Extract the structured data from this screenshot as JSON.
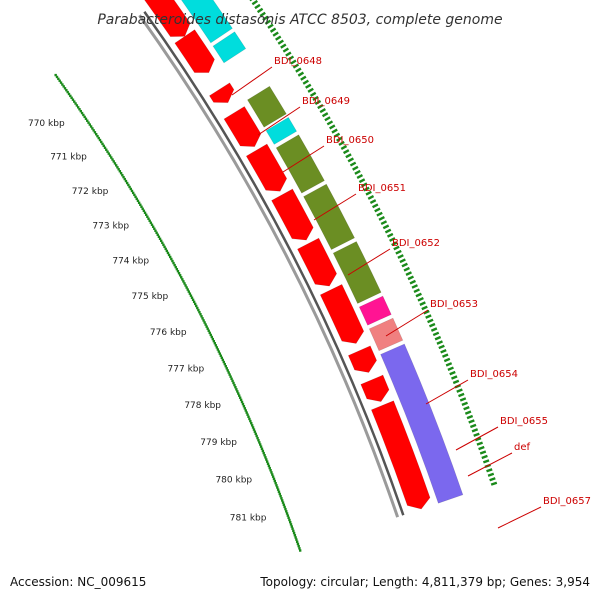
{
  "title": "Parabacteroides distasonis ATCC 8503, complete genome",
  "footer": {
    "accession": "Accession: NC_009615",
    "topology": "Topology: circular; Length: 4,811,379 bp; Genes: 3,954"
  },
  "colors": {
    "forward_cds": "#ff0000",
    "reverse_cds": "#00dddd",
    "olive": "#6b8e23",
    "magenta": "#ff1493",
    "pink": "#f08080",
    "purple": "#7b68ee",
    "backbone": "#888888",
    "tick": "#1a8a1a",
    "label": "#cc0000"
  },
  "tick_labels": [
    "770 kbp",
    "771 kbp",
    "772 kbp",
    "773 kbp",
    "774 kbp",
    "775 kbp",
    "776 kbp",
    "777 kbp",
    "778 kbp",
    "779 kbp",
    "780 kbp",
    "781 kbp"
  ],
  "genes": [
    {
      "label": "BDI_0648"
    },
    {
      "label": "BDI_0649"
    },
    {
      "label": "BDI_0650"
    },
    {
      "label": "BDI_0651"
    },
    {
      "label": "BDI_0652"
    },
    {
      "label": "BDI_0653"
    },
    {
      "label": "BDI_0654"
    },
    {
      "label": "BDI_0655"
    },
    {
      "label": "def"
    },
    {
      "label": "BDI_0657"
    }
  ]
}
